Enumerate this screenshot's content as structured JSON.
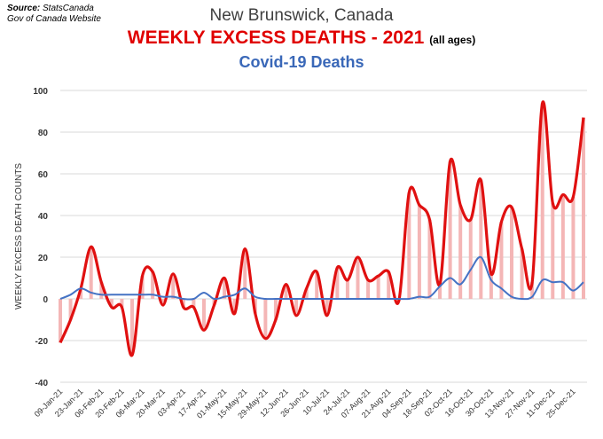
{
  "source": {
    "label": "Source:",
    "line1": "StatsCanada",
    "line2": "Gov of Canada Website"
  },
  "chart_data": {
    "type": "line",
    "title": "New Brunswick, Canada",
    "subtitle_main": "WEEKLY EXCESS DEATHS - 2021",
    "subtitle_note": "(all ages)",
    "subtitle2": "Covid-19 Deaths",
    "ylabel": "WEEKLY EXCESS DEATH COUNTS",
    "xlabel": "",
    "ylim": [
      -40,
      100
    ],
    "yticks": [
      -40,
      -20,
      0,
      20,
      40,
      60,
      80,
      100
    ],
    "grid": "horizontal",
    "xtick_labels": [
      "09-Jan-21",
      "23-Jan-21",
      "06-Feb-21",
      "20-Feb-21",
      "06-Mar-21",
      "20-Mar-21",
      "03-Apr-21",
      "17-Apr-21",
      "01-May-21",
      "15-May-21",
      "29-May-21",
      "12-Jun-21",
      "26-Jun-21",
      "10-Jul-21",
      "24-Jul-21",
      "07-Aug-21",
      "21-Aug-21",
      "04-Sep-21",
      "18-Sep-21",
      "02-Oct-21",
      "16-Oct-21",
      "30-Oct-21",
      "13-Nov-21",
      "27-Nov-21",
      "11-Dec-21",
      "25-Dec-21"
    ],
    "weeks": 52,
    "colors": {
      "excess": "#e01010",
      "bars": "#f4b6b6",
      "covid": "#4472c4",
      "grid": "#d9d9d9"
    },
    "series": [
      {
        "name": "WEEKLY EXCESS DEATHS",
        "type": "line+bar",
        "values": [
          -21,
          -10,
          5,
          25,
          8,
          -4,
          -4,
          -27,
          11,
          13,
          -3,
          12,
          -4,
          -4,
          -15,
          -3,
          10,
          -7,
          24,
          -7,
          -19,
          -10,
          7,
          -8,
          5,
          13,
          -8,
          15,
          9,
          20,
          9,
          11,
          13,
          -1,
          51,
          45,
          38,
          7,
          66,
          45,
          38,
          57,
          12,
          37,
          44,
          24,
          8,
          94,
          46,
          50,
          49,
          87
        ]
      },
      {
        "name": "Covid-19 Deaths",
        "type": "line",
        "values": [
          0,
          2,
          5,
          3,
          2,
          2,
          2,
          2,
          2,
          2,
          1,
          1,
          0,
          0,
          3,
          0,
          1,
          2,
          5,
          1,
          0,
          0,
          0,
          0,
          0,
          0,
          0,
          0,
          0,
          0,
          0,
          0,
          0,
          0,
          0,
          1,
          1,
          6,
          10,
          7,
          14,
          20,
          9,
          5,
          1,
          0,
          1,
          9,
          8,
          8,
          4,
          8
        ]
      }
    ]
  }
}
